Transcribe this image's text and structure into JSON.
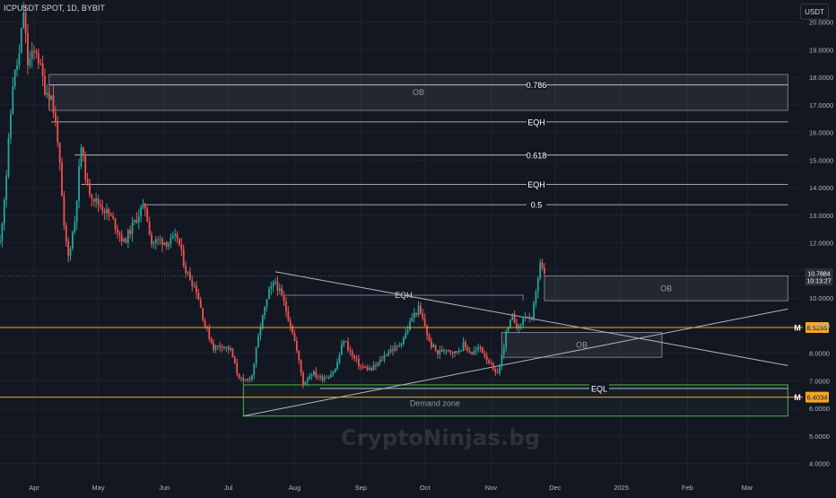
{
  "header": {
    "symbol": "ICPUSDT SPOT, 1D, BYBIT",
    "currency": "USDT"
  },
  "watermark": "CryptoNinjas.bg",
  "colors": {
    "background": "#131722",
    "up": "#26a69a",
    "down": "#ef5350",
    "grid": "#1e222d",
    "zone_fill": "#2a2e39",
    "zone_border": "#787b86",
    "level_line": "#d1d4dc",
    "orange": "#f5a623",
    "green": "#4caf50",
    "axis_text": "#b2b5be"
  },
  "chart_data": {
    "type": "candlestick",
    "y_axis": {
      "ticks": [
        "20.0000",
        "19.0000",
        "18.0000",
        "17.0000",
        "16.0000",
        "15.0000",
        "14.0000",
        "13.0000",
        "12.0000",
        "11.0000",
        "10.0000",
        "9.0000",
        "8.0000",
        "7.0000",
        "6.0000",
        "5.0000",
        "4.0000"
      ],
      "ylim": [
        3.4,
        20.8
      ],
      "scale": "linear"
    },
    "x_axis": {
      "ticks": [
        {
          "label": "Apr",
          "x": "2024-04-01"
        },
        {
          "label": "May",
          "x": "2024-05-01"
        },
        {
          "label": "Jun",
          "x": "2024-06-01"
        },
        {
          "label": "Jul",
          "x": "2024-07-01"
        },
        {
          "label": "Aug",
          "x": "2024-08-01"
        },
        {
          "label": "Sep",
          "x": "2024-09-01"
        },
        {
          "label": "Oct",
          "x": "2024-10-01"
        },
        {
          "label": "Nov",
          "x": "2024-11-01"
        },
        {
          "label": "Dec",
          "x": "2024-12-01"
        },
        {
          "label": "2025",
          "x": "2025-01-01"
        },
        {
          "label": "Feb",
          "x": "2025-02-01"
        },
        {
          "label": "Mar",
          "x": "2025-03-01"
        }
      ],
      "xlim": [
        "2024-03-16",
        "2025-03-27"
      ]
    },
    "price_path": [
      {
        "date": "2024-03-16",
        "price": 12.0
      },
      {
        "date": "2024-03-19",
        "price": 14.5
      },
      {
        "date": "2024-03-22",
        "price": 17.8
      },
      {
        "date": "2024-03-25",
        "price": 18.8
      },
      {
        "date": "2024-03-27",
        "price": 20.4
      },
      {
        "date": "2024-03-29",
        "price": 18.5
      },
      {
        "date": "2024-04-02",
        "price": 19.0
      },
      {
        "date": "2024-04-06",
        "price": 17.6
      },
      {
        "date": "2024-04-09",
        "price": 17.3
      },
      {
        "date": "2024-04-12",
        "price": 15.8
      },
      {
        "date": "2024-04-15",
        "price": 12.5
      },
      {
        "date": "2024-04-17",
        "price": 11.5
      },
      {
        "date": "2024-04-20",
        "price": 12.8
      },
      {
        "date": "2024-04-23",
        "price": 15.5
      },
      {
        "date": "2024-04-26",
        "price": 14.0
      },
      {
        "date": "2024-04-30",
        "price": 13.5
      },
      {
        "date": "2024-05-04",
        "price": 13.2
      },
      {
        "date": "2024-05-08",
        "price": 12.8
      },
      {
        "date": "2024-05-13",
        "price": 12.0
      },
      {
        "date": "2024-05-17",
        "price": 12.6
      },
      {
        "date": "2024-05-21",
        "price": 13.2
      },
      {
        "date": "2024-05-23",
        "price": 13.3
      },
      {
        "date": "2024-05-26",
        "price": 12.0
      },
      {
        "date": "2024-05-30",
        "price": 12.1
      },
      {
        "date": "2024-06-03",
        "price": 12.0
      },
      {
        "date": "2024-06-07",
        "price": 12.2
      },
      {
        "date": "2024-06-11",
        "price": 11.0
      },
      {
        "date": "2024-06-16",
        "price": 10.3
      },
      {
        "date": "2024-06-20",
        "price": 9.0
      },
      {
        "date": "2024-06-24",
        "price": 8.2
      },
      {
        "date": "2024-06-28",
        "price": 8.3
      },
      {
        "date": "2024-07-02",
        "price": 8.1
      },
      {
        "date": "2024-07-05",
        "price": 7.3
      },
      {
        "date": "2024-07-08",
        "price": 6.9
      },
      {
        "date": "2024-07-12",
        "price": 7.2
      },
      {
        "date": "2024-07-16",
        "price": 9.0
      },
      {
        "date": "2024-07-20",
        "price": 10.2
      },
      {
        "date": "2024-07-23",
        "price": 10.6
      },
      {
        "date": "2024-07-27",
        "price": 9.8
      },
      {
        "date": "2024-07-31",
        "price": 8.8
      },
      {
        "date": "2024-08-03",
        "price": 7.7
      },
      {
        "date": "2024-08-05",
        "price": 6.9
      },
      {
        "date": "2024-08-09",
        "price": 7.3
      },
      {
        "date": "2024-08-13",
        "price": 7.1
      },
      {
        "date": "2024-08-17",
        "price": 7.2
      },
      {
        "date": "2024-08-20",
        "price": 7.4
      },
      {
        "date": "2024-08-24",
        "price": 8.5
      },
      {
        "date": "2024-08-28",
        "price": 7.9
      },
      {
        "date": "2024-09-01",
        "price": 7.5
      },
      {
        "date": "2024-09-06",
        "price": 7.4
      },
      {
        "date": "2024-09-10",
        "price": 7.7
      },
      {
        "date": "2024-09-14",
        "price": 8.1
      },
      {
        "date": "2024-09-18",
        "price": 8.2
      },
      {
        "date": "2024-09-22",
        "price": 8.7
      },
      {
        "date": "2024-09-25",
        "price": 9.3
      },
      {
        "date": "2024-09-28",
        "price": 9.6
      },
      {
        "date": "2024-10-01",
        "price": 9.0
      },
      {
        "date": "2024-10-03",
        "price": 8.4
      },
      {
        "date": "2024-10-07",
        "price": 8.0
      },
      {
        "date": "2024-10-11",
        "price": 8.2
      },
      {
        "date": "2024-10-15",
        "price": 8.0
      },
      {
        "date": "2024-10-19",
        "price": 8.3
      },
      {
        "date": "2024-10-23",
        "price": 8.0
      },
      {
        "date": "2024-10-27",
        "price": 8.2
      },
      {
        "date": "2024-10-31",
        "price": 7.7
      },
      {
        "date": "2024-11-03",
        "price": 7.2
      },
      {
        "date": "2024-11-05",
        "price": 7.5
      },
      {
        "date": "2024-11-08",
        "price": 8.7
      },
      {
        "date": "2024-11-11",
        "price": 9.3
      },
      {
        "date": "2024-11-14",
        "price": 8.9
      },
      {
        "date": "2024-11-17",
        "price": 9.4
      },
      {
        "date": "2024-11-20",
        "price": 9.1
      },
      {
        "date": "2024-11-22",
        "price": 10.3
      },
      {
        "date": "2024-11-24",
        "price": 11.2
      },
      {
        "date": "2024-11-26",
        "price": 10.79
      }
    ],
    "current_price": {
      "value": 10.7884,
      "label": "10.7884",
      "countdown": "10:13:27"
    },
    "horizontal_levels": [
      {
        "label": "0.786",
        "y": 17.72,
        "x_start": "2024-04-08",
        "x_end": "2025-03-20",
        "color": "#d1d4dc"
      },
      {
        "label": "EQH",
        "y": 16.38,
        "x_start": "2024-04-09",
        "x_end": "2025-03-20",
        "color": "#d1d4dc"
      },
      {
        "label": "0.618",
        "y": 15.18,
        "x_start": "2024-04-20",
        "x_end": "2025-03-20",
        "color": "#d1d4dc"
      },
      {
        "label": "EQH",
        "y": 14.12,
        "x_start": "2024-04-23",
        "x_end": "2025-03-20",
        "color": "#d1d4dc"
      },
      {
        "label": "0.5",
        "y": 13.38,
        "x_start": "2024-05-23",
        "x_end": "2025-03-20",
        "color": "#d1d4dc"
      },
      {
        "label": "EQL",
        "y": 6.72,
        "x_start": "2024-08-13",
        "x_end": "2025-03-20",
        "color": "#d1d4dc"
      }
    ],
    "key_levels": [
      {
        "label": "M",
        "y": 8.9286,
        "tag": "8.9286",
        "color": "#f5a623"
      },
      {
        "label": "M",
        "y": 6.4034,
        "tag": "6.4034",
        "color": "#f5a623"
      }
    ],
    "zones": [
      {
        "label": "OB",
        "y_top": 18.1,
        "y_bottom": 16.8,
        "x_start": "2024-04-08",
        "x_end": "2025-03-20",
        "kind": "gray"
      },
      {
        "label": "OB",
        "y_top": 10.8,
        "y_bottom": 9.9,
        "x_start": "2024-11-26",
        "x_end": "2025-03-20",
        "kind": "gray"
      },
      {
        "label": "OB",
        "y_top": 8.75,
        "y_bottom": 7.85,
        "x_start": "2024-11-06",
        "x_end": "2025-01-20",
        "kind": "gray"
      },
      {
        "label": "Demand zone",
        "y_top": 6.85,
        "y_bottom": 5.72,
        "x_start": "2024-07-08",
        "x_end": "2025-03-20",
        "kind": "green"
      },
      {
        "label": "EQH",
        "y_top": 10.1,
        "y_bottom": 10.1,
        "x_start": "2024-07-27",
        "x_end": "2024-11-16",
        "kind": "bracket"
      }
    ],
    "trendlines": [
      {
        "from": {
          "x": "2024-07-23",
          "y": 10.95
        },
        "to": {
          "x": "2025-03-20",
          "y": 7.55
        }
      },
      {
        "from": {
          "x": "2024-07-08",
          "y": 5.72
        },
        "to": {
          "x": "2025-03-20",
          "y": 9.6
        }
      }
    ],
    "grid": true
  }
}
